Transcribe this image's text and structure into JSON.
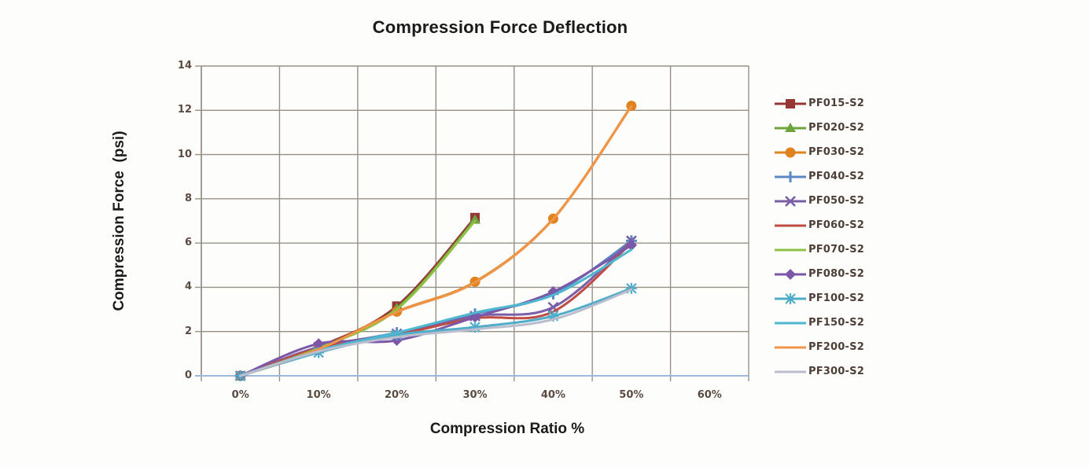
{
  "title": "Compression Force Deflection",
  "x_axis": {
    "title": "Compression Ratio %"
  },
  "y_axis": {
    "title": "Compression Force  (psi)"
  },
  "chart_data": {
    "type": "line",
    "title": "Compression Force Deflection",
    "xlabel": "Compression Ratio %",
    "ylabel": "Compression Force (psi)",
    "categories": [
      "0%",
      "10%",
      "20%",
      "30%",
      "40%",
      "50%",
      "60%"
    ],
    "ylim": [
      0,
      14
    ],
    "y_ticks": [
      0,
      2,
      4,
      6,
      8,
      10,
      12,
      14
    ],
    "grid": true,
    "legend_position": "right",
    "axis_zero_line_color": "#9db8da",
    "series": [
      {
        "name": "PF015-S2",
        "color": "#953735",
        "marker": "square",
        "values": [
          0,
          1.3,
          3.15,
          7.15,
          null,
          null,
          null
        ]
      },
      {
        "name": "PF020-S2",
        "color": "#6fa33e",
        "marker": "triangle",
        "values": [
          0,
          1.25,
          3.05,
          7.05,
          null,
          null,
          null
        ]
      },
      {
        "name": "PF030-S2",
        "color": "#e0821e",
        "marker": "circle",
        "values": [
          0,
          1.2,
          2.9,
          4.25,
          7.1,
          12.2,
          null
        ]
      },
      {
        "name": "PF040-S2",
        "color": "#5b87c5",
        "marker": "plus",
        "values": [
          0,
          1.25,
          1.95,
          2.8,
          3.7,
          6.1,
          null
        ]
      },
      {
        "name": "PF050-S2",
        "color": "#7a5fa8",
        "marker": "x",
        "values": [
          0,
          1.3,
          1.9,
          2.7,
          3.1,
          6.1,
          null
        ]
      },
      {
        "name": "PF060-S2",
        "color": "#bf4d44",
        "marker": "none",
        "values": [
          0,
          1.25,
          1.85,
          2.6,
          2.9,
          6.0,
          null
        ]
      },
      {
        "name": "PF070-S2",
        "color": "#8fc145",
        "marker": "none",
        "values": [
          0,
          1.25,
          3.0,
          7.0,
          null,
          null,
          null
        ]
      },
      {
        "name": "PF080-S2",
        "color": "#7c57a8",
        "marker": "diamond",
        "values": [
          0,
          1.45,
          1.6,
          2.65,
          3.8,
          5.9,
          null
        ]
      },
      {
        "name": "PF100-S2",
        "color": "#4fadc9",
        "marker": "asterisk",
        "values": [
          0,
          1.05,
          1.85,
          2.2,
          2.7,
          3.95,
          null
        ]
      },
      {
        "name": "PF150-S2",
        "color": "#4db8cf",
        "marker": "none",
        "values": [
          0,
          1.15,
          1.95,
          2.85,
          3.65,
          5.7,
          null
        ]
      },
      {
        "name": "PF200-S2",
        "color": "#ee9549",
        "marker": "none",
        "values": [
          0,
          1.2,
          2.88,
          4.22,
          7.08,
          12.18,
          null
        ]
      },
      {
        "name": "PF300-S2",
        "color": "#b9bdce",
        "marker": "none",
        "values": [
          0,
          1.1,
          1.75,
          2.1,
          2.55,
          3.9,
          null
        ]
      }
    ]
  }
}
